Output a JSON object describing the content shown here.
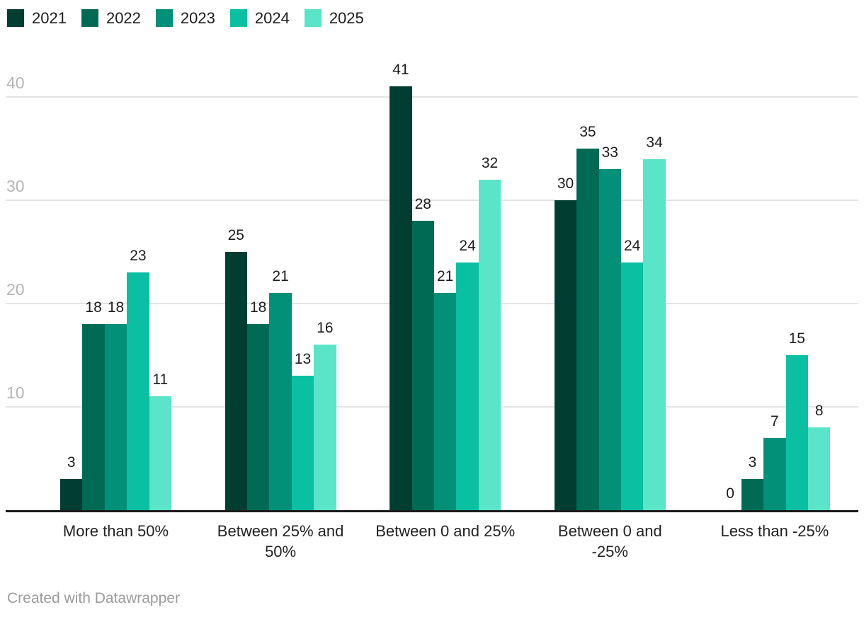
{
  "chart_data": {
    "type": "bar",
    "title": "",
    "xlabel": "",
    "ylabel": "",
    "categories": [
      "More than 50%",
      "Between 25% and 50%",
      "Between 0 and 25%",
      "Between 0 and -25%",
      "Less than -25%"
    ],
    "category_display_lines": [
      [
        "More than 50%"
      ],
      [
        "Between 25% and",
        "50%"
      ],
      [
        "Between 0 and 25%"
      ],
      [
        "Between 0 and",
        "-25%"
      ],
      [
        "Less than -25%"
      ]
    ],
    "series": [
      {
        "name": "2021",
        "color": "#013d31",
        "values": [
          3,
          25,
          41,
          30,
          0
        ]
      },
      {
        "name": "2022",
        "color": "#016a55",
        "values": [
          18,
          18,
          28,
          35,
          3
        ]
      },
      {
        "name": "2023",
        "color": "#029079",
        "values": [
          18,
          21,
          21,
          33,
          7
        ]
      },
      {
        "name": "2024",
        "color": "#0bbfa2",
        "values": [
          23,
          13,
          24,
          24,
          15
        ]
      },
      {
        "name": "2025",
        "color": "#5ae4c8",
        "values": [
          11,
          16,
          32,
          34,
          8
        ]
      }
    ],
    "ylim": [
      0,
      43
    ],
    "yticks": [
      10,
      20,
      30,
      40
    ],
    "grid": true,
    "legend_position": "top-left",
    "value_labels": true,
    "axis_colors": {
      "tick_label": "#b5b5b5",
      "gridline": "#e4e4e4",
      "baseline": "#1a1a1a",
      "value_label": "#1d1d1d",
      "category_label": "#222222"
    }
  },
  "footer": {
    "credit": "Created with Datawrapper",
    "color": "#9c9c9c"
  }
}
